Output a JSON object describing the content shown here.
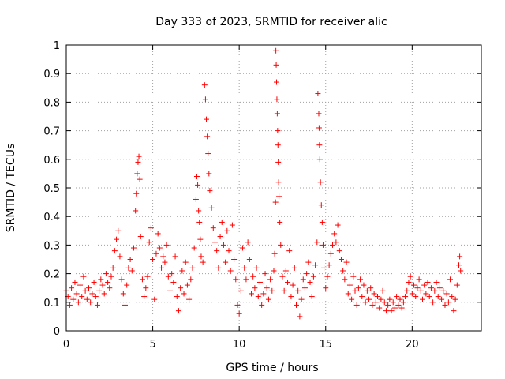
{
  "chart_data": {
    "type": "scatter",
    "title": "Day 333 of 2023, SRMTID for receiver alic",
    "xlabel": "GPS time / hours",
    "ylabel": "SRMTID / TECUs",
    "xlim": [
      0,
      24
    ],
    "ylim": [
      0,
      1
    ],
    "xticks": [
      0,
      5,
      10,
      15,
      20
    ],
    "xtick_labels": [
      "0",
      "5",
      "10",
      "15",
      "20"
    ],
    "yticks": [
      0,
      0.1,
      0.2,
      0.3,
      0.4,
      0.5,
      0.6,
      0.7,
      0.8,
      0.9,
      1
    ],
    "ytick_labels": [
      "0",
      "0.1",
      "0.2",
      "0.3",
      "0.4",
      "0.5",
      "0.6",
      "0.7",
      "0.8",
      "0.9",
      "1"
    ],
    "grid": true,
    "marker": "+",
    "marker_color": "#ff0000",
    "series": [
      {
        "name": "SRMTID",
        "points": [
          [
            0.0,
            0.14
          ],
          [
            0.1,
            0.12
          ],
          [
            0.2,
            0.09
          ],
          [
            0.3,
            0.15
          ],
          [
            0.4,
            0.11
          ],
          [
            0.5,
            0.17
          ],
          [
            0.6,
            0.13
          ],
          [
            0.7,
            0.1
          ],
          [
            0.8,
            0.16
          ],
          [
            0.9,
            0.12
          ],
          [
            1.0,
            0.19
          ],
          [
            1.1,
            0.14
          ],
          [
            1.2,
            0.11
          ],
          [
            1.3,
            0.15
          ],
          [
            1.4,
            0.1
          ],
          [
            1.5,
            0.13
          ],
          [
            1.6,
            0.17
          ],
          [
            1.7,
            0.12
          ],
          [
            1.8,
            0.09
          ],
          [
            1.9,
            0.14
          ],
          [
            2.0,
            0.18
          ],
          [
            2.1,
            0.16
          ],
          [
            2.2,
            0.13
          ],
          [
            2.3,
            0.2
          ],
          [
            2.4,
            0.17
          ],
          [
            2.5,
            0.15
          ],
          [
            2.6,
            0.19
          ],
          [
            2.7,
            0.22
          ],
          [
            2.8,
            0.28
          ],
          [
            2.9,
            0.32
          ],
          [
            3.0,
            0.35
          ],
          [
            3.1,
            0.26
          ],
          [
            3.2,
            0.18
          ],
          [
            3.3,
            0.13
          ],
          [
            3.4,
            0.09
          ],
          [
            3.5,
            0.16
          ],
          [
            3.6,
            0.22
          ],
          [
            3.7,
            0.25
          ],
          [
            3.8,
            0.21
          ],
          [
            3.9,
            0.29
          ],
          [
            4.0,
            0.42
          ],
          [
            4.05,
            0.48
          ],
          [
            4.1,
            0.55
          ],
          [
            4.15,
            0.59
          ],
          [
            4.2,
            0.61
          ],
          [
            4.25,
            0.53
          ],
          [
            4.3,
            0.33
          ],
          [
            4.4,
            0.18
          ],
          [
            4.5,
            0.12
          ],
          [
            4.6,
            0.15
          ],
          [
            4.7,
            0.19
          ],
          [
            4.8,
            0.31
          ],
          [
            4.9,
            0.36
          ],
          [
            5.0,
            0.25
          ],
          [
            5.1,
            0.11
          ],
          [
            5.2,
            0.27
          ],
          [
            5.3,
            0.34
          ],
          [
            5.4,
            0.29
          ],
          [
            5.5,
            0.22
          ],
          [
            5.6,
            0.26
          ],
          [
            5.7,
            0.24
          ],
          [
            5.8,
            0.3
          ],
          [
            5.9,
            0.19
          ],
          [
            6.0,
            0.14
          ],
          [
            6.1,
            0.2
          ],
          [
            6.2,
            0.17
          ],
          [
            6.3,
            0.26
          ],
          [
            6.4,
            0.12
          ],
          [
            6.5,
            0.07
          ],
          [
            6.6,
            0.15
          ],
          [
            6.7,
            0.21
          ],
          [
            6.8,
            0.13
          ],
          [
            6.9,
            0.24
          ],
          [
            7.0,
            0.16
          ],
          [
            7.1,
            0.11
          ],
          [
            7.2,
            0.18
          ],
          [
            7.3,
            0.22
          ],
          [
            7.4,
            0.29
          ],
          [
            7.5,
            0.46
          ],
          [
            7.55,
            0.54
          ],
          [
            7.6,
            0.51
          ],
          [
            7.65,
            0.42
          ],
          [
            7.7,
            0.38
          ],
          [
            7.75,
            0.32
          ],
          [
            7.8,
            0.26
          ],
          [
            7.9,
            0.24
          ],
          [
            8.0,
            0.86
          ],
          [
            8.05,
            0.81
          ],
          [
            8.1,
            0.74
          ],
          [
            8.15,
            0.68
          ],
          [
            8.2,
            0.62
          ],
          [
            8.25,
            0.55
          ],
          [
            8.3,
            0.49
          ],
          [
            8.4,
            0.43
          ],
          [
            8.5,
            0.36
          ],
          [
            8.6,
            0.31
          ],
          [
            8.7,
            0.28
          ],
          [
            8.8,
            0.22
          ],
          [
            8.9,
            0.33
          ],
          [
            9.0,
            0.38
          ],
          [
            9.1,
            0.3
          ],
          [
            9.2,
            0.24
          ],
          [
            9.3,
            0.35
          ],
          [
            9.4,
            0.28
          ],
          [
            9.5,
            0.21
          ],
          [
            9.6,
            0.37
          ],
          [
            9.7,
            0.25
          ],
          [
            9.8,
            0.18
          ],
          [
            9.9,
            0.09
          ],
          [
            10.0,
            0.06
          ],
          [
            10.1,
            0.14
          ],
          [
            10.2,
            0.29
          ],
          [
            10.3,
            0.22
          ],
          [
            10.4,
            0.18
          ],
          [
            10.5,
            0.31
          ],
          [
            10.6,
            0.25
          ],
          [
            10.7,
            0.13
          ],
          [
            10.8,
            0.19
          ],
          [
            10.9,
            0.15
          ],
          [
            11.0,
            0.22
          ],
          [
            11.1,
            0.12
          ],
          [
            11.2,
            0.17
          ],
          [
            11.3,
            0.09
          ],
          [
            11.4,
            0.13
          ],
          [
            11.5,
            0.2
          ],
          [
            11.6,
            0.15
          ],
          [
            11.7,
            0.11
          ],
          [
            11.8,
            0.18
          ],
          [
            11.9,
            0.14
          ],
          [
            12.0,
            0.21
          ],
          [
            12.05,
            0.27
          ],
          [
            12.1,
            0.45
          ],
          [
            12.12,
            0.98
          ],
          [
            12.14,
            0.93
          ],
          [
            12.16,
            0.87
          ],
          [
            12.18,
            0.81
          ],
          [
            12.2,
            0.76
          ],
          [
            12.22,
            0.7
          ],
          [
            12.24,
            0.65
          ],
          [
            12.26,
            0.59
          ],
          [
            12.28,
            0.52
          ],
          [
            12.3,
            0.47
          ],
          [
            12.35,
            0.38
          ],
          [
            12.4,
            0.3
          ],
          [
            12.5,
            0.19
          ],
          [
            12.6,
            0.14
          ],
          [
            12.7,
            0.21
          ],
          [
            12.8,
            0.17
          ],
          [
            12.9,
            0.28
          ],
          [
            13.0,
            0.12
          ],
          [
            13.1,
            0.16
          ],
          [
            13.2,
            0.22
          ],
          [
            13.3,
            0.09
          ],
          [
            13.4,
            0.14
          ],
          [
            13.5,
            0.05
          ],
          [
            13.6,
            0.11
          ],
          [
            13.7,
            0.18
          ],
          [
            13.8,
            0.15
          ],
          [
            13.9,
            0.2
          ],
          [
            14.0,
            0.24
          ],
          [
            14.1,
            0.17
          ],
          [
            14.2,
            0.12
          ],
          [
            14.3,
            0.19
          ],
          [
            14.4,
            0.23
          ],
          [
            14.5,
            0.31
          ],
          [
            14.55,
            0.83
          ],
          [
            14.6,
            0.76
          ],
          [
            14.62,
            0.71
          ],
          [
            14.64,
            0.65
          ],
          [
            14.66,
            0.6
          ],
          [
            14.7,
            0.52
          ],
          [
            14.75,
            0.44
          ],
          [
            14.8,
            0.38
          ],
          [
            14.85,
            0.3
          ],
          [
            14.9,
            0.22
          ],
          [
            15.0,
            0.15
          ],
          [
            15.1,
            0.19
          ],
          [
            15.2,
            0.23
          ],
          [
            15.3,
            0.27
          ],
          [
            15.4,
            0.3
          ],
          [
            15.5,
            0.34
          ],
          [
            15.6,
            0.31
          ],
          [
            15.7,
            0.37
          ],
          [
            15.8,
            0.28
          ],
          [
            15.9,
            0.25
          ],
          [
            16.0,
            0.21
          ],
          [
            16.1,
            0.18
          ],
          [
            16.2,
            0.24
          ],
          [
            16.3,
            0.13
          ],
          [
            16.4,
            0.16
          ],
          [
            16.5,
            0.11
          ],
          [
            16.6,
            0.19
          ],
          [
            16.7,
            0.14
          ],
          [
            16.8,
            0.09
          ],
          [
            16.9,
            0.15
          ],
          [
            17.0,
            0.18
          ],
          [
            17.1,
            0.12
          ],
          [
            17.2,
            0.16
          ],
          [
            17.3,
            0.1
          ],
          [
            17.4,
            0.14
          ],
          [
            17.5,
            0.11
          ],
          [
            17.6,
            0.15
          ],
          [
            17.7,
            0.09
          ],
          [
            17.8,
            0.13
          ],
          [
            17.9,
            0.1
          ],
          [
            18.0,
            0.12
          ],
          [
            18.1,
            0.08
          ],
          [
            18.2,
            0.11
          ],
          [
            18.3,
            0.14
          ],
          [
            18.4,
            0.1
          ],
          [
            18.5,
            0.07
          ],
          [
            18.6,
            0.09
          ],
          [
            18.7,
            0.11
          ],
          [
            18.8,
            0.07
          ],
          [
            18.9,
            0.1
          ],
          [
            19.0,
            0.08
          ],
          [
            19.1,
            0.12
          ],
          [
            19.2,
            0.09
          ],
          [
            19.3,
            0.11
          ],
          [
            19.4,
            0.08
          ],
          [
            19.5,
            0.1
          ],
          [
            19.6,
            0.12
          ],
          [
            19.7,
            0.14
          ],
          [
            19.8,
            0.17
          ],
          [
            19.9,
            0.19
          ],
          [
            20.0,
            0.13
          ],
          [
            20.1,
            0.16
          ],
          [
            20.2,
            0.12
          ],
          [
            20.3,
            0.15
          ],
          [
            20.4,
            0.18
          ],
          [
            20.5,
            0.14
          ],
          [
            20.6,
            0.11
          ],
          [
            20.7,
            0.16
          ],
          [
            20.8,
            0.13
          ],
          [
            20.9,
            0.17
          ],
          [
            21.0,
            0.12
          ],
          [
            21.1,
            0.15
          ],
          [
            21.2,
            0.1
          ],
          [
            21.3,
            0.14
          ],
          [
            21.4,
            0.17
          ],
          [
            21.5,
            0.12
          ],
          [
            21.6,
            0.15
          ],
          [
            21.7,
            0.11
          ],
          [
            21.8,
            0.14
          ],
          [
            21.9,
            0.09
          ],
          [
            22.0,
            0.13
          ],
          [
            22.1,
            0.1
          ],
          [
            22.2,
            0.18
          ],
          [
            22.3,
            0.12
          ],
          [
            22.4,
            0.07
          ],
          [
            22.5,
            0.11
          ],
          [
            22.6,
            0.16
          ],
          [
            22.7,
            0.23
          ],
          [
            22.75,
            0.26
          ],
          [
            22.8,
            0.21
          ]
        ]
      }
    ]
  }
}
